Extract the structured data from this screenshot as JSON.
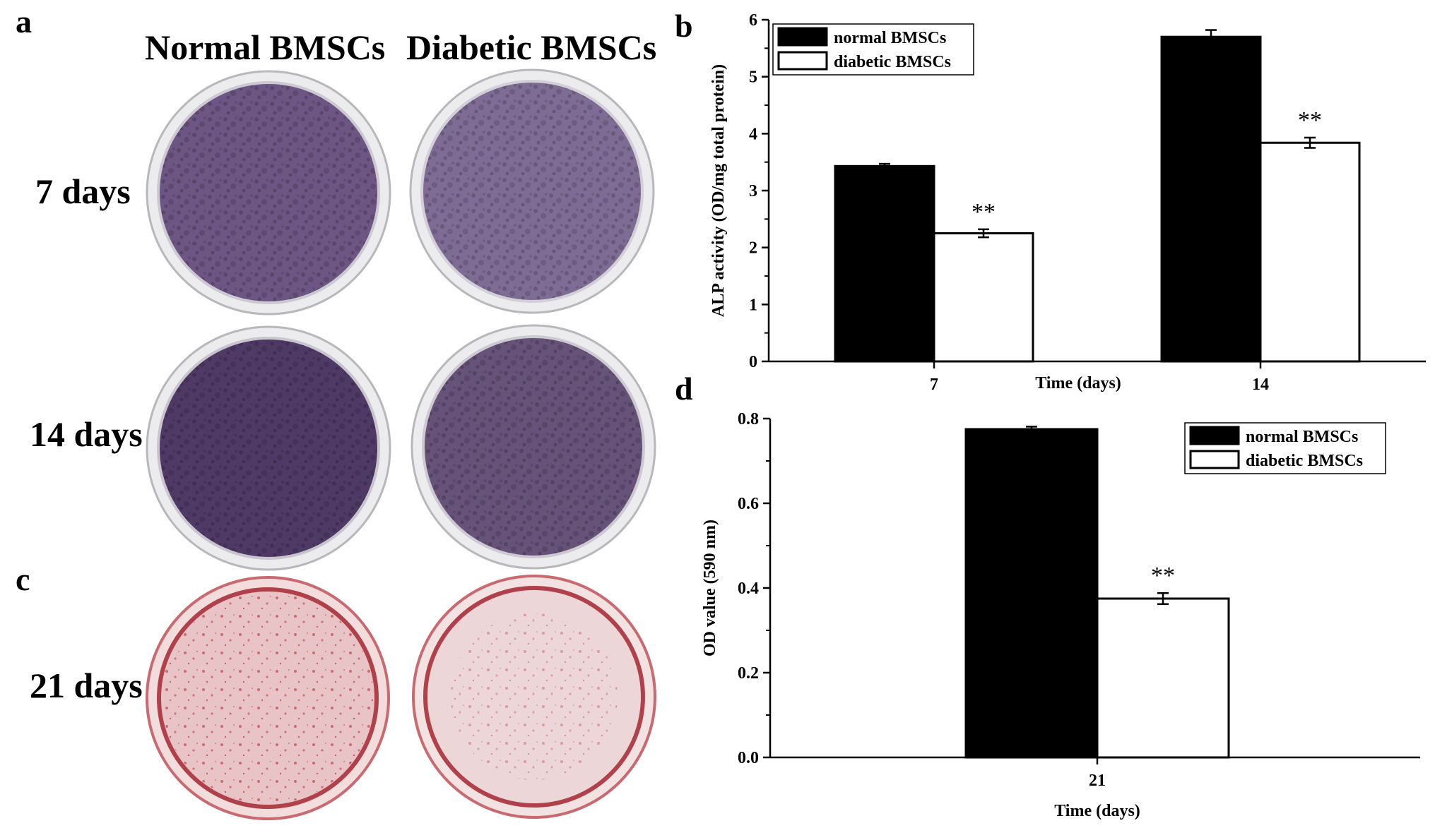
{
  "panels": {
    "a": "a",
    "b": "b",
    "c": "c",
    "d": "d"
  },
  "photo_grid": {
    "columns": [
      "Normal BMSCs",
      "Diabetic BMSCs"
    ],
    "rows": [
      "7 days",
      "14 days",
      "21 days"
    ],
    "alp_stain_color": "#5a3f73",
    "alizarin_stain_color": "#cf4a4f"
  },
  "chart_data": [
    {
      "type": "bar",
      "title": "",
      "xlabel": "Time (days)",
      "ylabel": "ALP activity (OD/mg total protein)",
      "categories": [
        "7",
        "14"
      ],
      "ylim": [
        0,
        6
      ],
      "yticks": [
        "0",
        "1",
        "2",
        "3",
        "4",
        "5",
        "6"
      ],
      "series": [
        {
          "name": "normal BMSCs",
          "values": [
            3.43,
            5.7
          ],
          "errors": [
            0.04,
            0.12
          ],
          "fill": "#000000"
        },
        {
          "name": "diabetic BMSCs",
          "values": [
            2.25,
            3.84
          ],
          "errors": [
            0.07,
            0.09
          ],
          "fill": "#ffffff"
        }
      ],
      "annotations": [
        "**",
        "**"
      ],
      "legend": "top-left",
      "grid": false
    },
    {
      "type": "bar",
      "title": "",
      "xlabel": "Time (days)",
      "ylabel": "OD value (590 nm)",
      "categories": [
        "21"
      ],
      "ylim": [
        0,
        0.8
      ],
      "yticks": [
        "0.0",
        "0.2",
        "0.4",
        "0.6",
        "0.8"
      ],
      "series": [
        {
          "name": "normal BMSCs",
          "values": [
            0.775
          ],
          "errors": [
            0.006
          ],
          "fill": "#000000"
        },
        {
          "name": "diabetic BMSCs",
          "values": [
            0.375
          ],
          "errors": [
            0.013
          ],
          "fill": "#ffffff"
        }
      ],
      "annotations": [
        "**"
      ],
      "legend": "top-right",
      "grid": false
    }
  ]
}
